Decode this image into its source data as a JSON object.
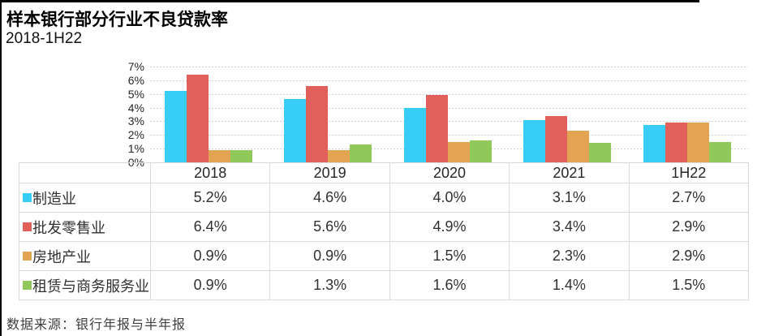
{
  "header": {
    "title": "样本银行部分行业不良贷款率",
    "subtitle": "2018-1H22"
  },
  "chart_data": {
    "type": "bar",
    "title": "样本银行部分行业不良贷款率",
    "subtitle": "2018-1H22",
    "categories": [
      "2018",
      "2019",
      "2020",
      "2021",
      "1H22"
    ],
    "series": [
      {
        "name": "制造业",
        "color": "#38CDF7",
        "values": [
          5.2,
          4.6,
          4.0,
          3.1,
          2.7
        ]
      },
      {
        "name": "批发零售业",
        "color": "#E2605B",
        "values": [
          6.4,
          5.6,
          4.9,
          3.4,
          2.9
        ]
      },
      {
        "name": "房地产业",
        "color": "#E2A452",
        "values": [
          0.9,
          0.9,
          1.5,
          2.3,
          2.9
        ]
      },
      {
        "name": "租赁与商务服务业",
        "color": "#90C95A",
        "values": [
          0.9,
          1.3,
          1.6,
          1.4,
          1.5
        ]
      }
    ],
    "xlabel": "",
    "ylabel": "",
    "ylim": [
      0,
      7
    ],
    "y_ticks": [
      "0%",
      "1%",
      "2%",
      "3%",
      "4%",
      "5%",
      "6%",
      "7%"
    ],
    "grid": "horizontal-dashed",
    "legend_position": "table-left-column"
  },
  "table": {
    "header": [
      "2018",
      "2019",
      "2020",
      "2021",
      "1H22"
    ],
    "rows": [
      {
        "label": "制造业",
        "color": "#38CDF7",
        "cells": [
          "5.2%",
          "4.6%",
          "4.0%",
          "3.1%",
          "2.7%"
        ]
      },
      {
        "label": "批发零售业",
        "color": "#E2605B",
        "cells": [
          "6.4%",
          "5.6%",
          "4.9%",
          "3.4%",
          "2.9%"
        ]
      },
      {
        "label": "房地产业",
        "color": "#E2A452",
        "cells": [
          "0.9%",
          "0.9%",
          "1.5%",
          "2.3%",
          "2.9%"
        ]
      },
      {
        "label": "租赁与商务服务业",
        "color": "#90C95A",
        "cells": [
          "0.9%",
          "1.3%",
          "1.6%",
          "1.4%",
          "1.5%"
        ]
      }
    ]
  },
  "footer": {
    "source": "数据来源：银行年报与半年报"
  }
}
